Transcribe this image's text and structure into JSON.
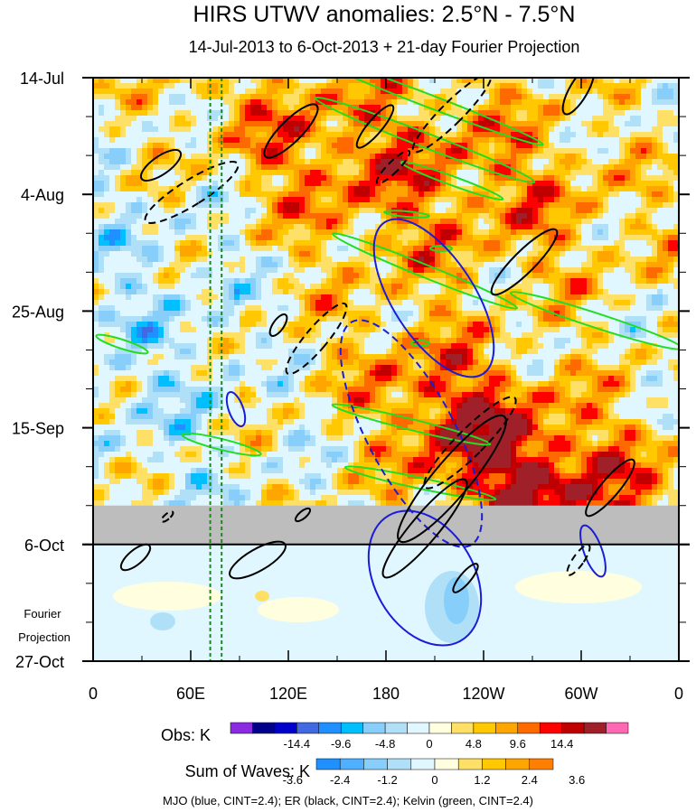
{
  "chart_data": {
    "type": "heatmap",
    "title": "HIRS UTWV anomalies: 2.5°N - 7.5°N",
    "subtitle": "14-Jul-2013 to 6-Oct-2013 + 21-day Fourier Projection",
    "x_tick_labels": [
      "0",
      "60E",
      "120E",
      "180",
      "120W",
      "60W",
      "0"
    ],
    "x_ticks_deg": [
      0,
      60,
      120,
      180,
      240,
      300,
      360
    ],
    "xlim": [
      0,
      360
    ],
    "y_tick_labels": [
      "14-Jul",
      "4-Aug",
      "25-Aug",
      "15-Sep",
      "6-Oct",
      "27-Oct"
    ],
    "y_ticks_day": [
      0,
      21,
      42,
      63,
      84,
      105
    ],
    "ylim_days": [
      0,
      105
    ],
    "observed_end_day": 84,
    "missing_band_days": [
      77,
      84
    ],
    "projection_label": [
      "Fourier",
      "Projection"
    ],
    "reference_lines_deg": [
      72,
      79
    ],
    "obs_colorbar": {
      "label": "Obs: K",
      "tick_labels": [
        "-14.4",
        "-9.6",
        "-4.8",
        "0",
        "4.8",
        "9.6",
        "14.4"
      ],
      "colors": [
        "#8a2be2",
        "#00008b",
        "#0000cd",
        "#4169e1",
        "#1e90ff",
        "#00bfff",
        "#87cefa",
        "#b0e0f8",
        "#e0f7ff",
        "#ffffe0",
        "#ffe066",
        "#ffc800",
        "#ffa500",
        "#ff6a00",
        "#ff0000",
        "#c00000",
        "#a0202a",
        "#ff69b4"
      ]
    },
    "waves_colorbar": {
      "label": "Sum of Waves: K",
      "tick_labels": [
        "-3.6",
        "-2.4",
        "-1.2",
        "0",
        "1.2",
        "2.4",
        "3.6"
      ],
      "colors": [
        "#1e90ff",
        "#4fb0ff",
        "#87cefa",
        "#b0e0f8",
        "#e0f7ff",
        "#ffffe0",
        "#ffe066",
        "#ffc800",
        "#ffa500",
        "#ff8000"
      ]
    },
    "contour_legend": "MJO (blue, CINT=2.4); ER (black, CINT=2.4); Kelvin (green, CINT=2.4)",
    "wave_colors": {
      "mjo": "#1c1cd8",
      "er": "#000000",
      "kelvin": "#22dd22"
    }
  }
}
